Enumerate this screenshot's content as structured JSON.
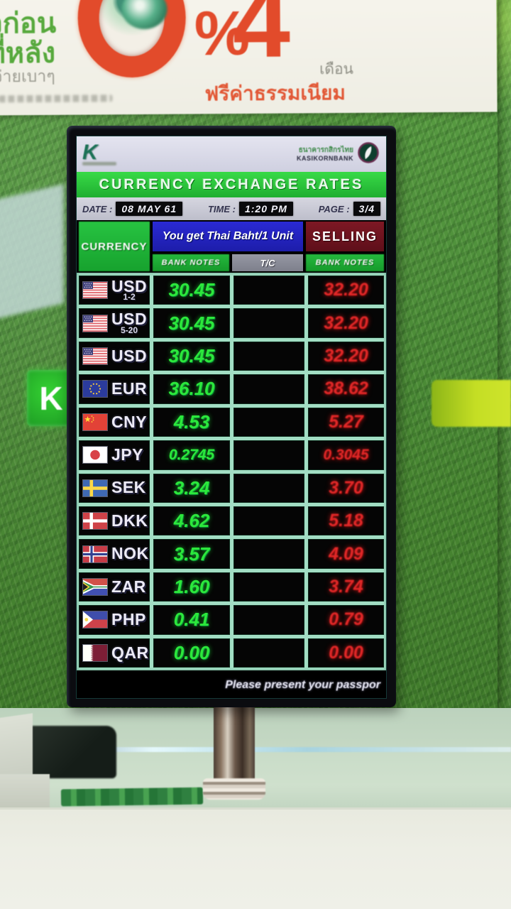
{
  "colors": {
    "buy_green": "#2ce83c",
    "sell_red": "#e02828",
    "title_green": "#28c63e",
    "header_blue": "#2424c8",
    "selling_maroon": "#6e1420",
    "k_sign_green": "#2ab52a"
  },
  "banner": {
    "line1": "ยวก่อน",
    "line2": "ยที่หลัง",
    "line3": "ปงจ่ายเบาๆ",
    "zero": "",
    "percent": "%",
    "four": "4",
    "month": "เดือน",
    "free_fee": "ฟรีค่าธรรมเนียม"
  },
  "k_sign": {
    "label": "K"
  },
  "screen": {
    "k_logo": "K",
    "bank_name_th": "ธนาคารกสิกรไทย",
    "bank_name_en": "KASIKORNBANK",
    "title": "CURRENCY EXCHANGE RATES",
    "date_label": "DATE :",
    "date_value": "08 MAY 61",
    "time_label": "TIME :",
    "time_value": "1:20 PM",
    "page_label": "PAGE :",
    "page_value": "3/4",
    "col_currency": "CURRENCY",
    "col_buy": "You get Thai Baht/1 Unit",
    "col_selling": "SELLING",
    "sub_bank_notes": "BANK NOTES",
    "sub_tc": "T/C",
    "sub_bank_notes2": "BANK NOTES",
    "footer": "Please present your passpor",
    "rows": [
      {
        "flag": "us",
        "code": "USD",
        "sub": "1-2",
        "buy": "30.45",
        "tc": "",
        "sell": "32.20"
      },
      {
        "flag": "us",
        "code": "USD",
        "sub": "5-20",
        "buy": "30.45",
        "tc": "",
        "sell": "32.20"
      },
      {
        "flag": "us",
        "code": "USD",
        "sub": "",
        "buy": "30.45",
        "tc": "",
        "sell": "32.20"
      },
      {
        "flag": "eu",
        "code": "EUR",
        "sub": "",
        "buy": "36.10",
        "tc": "",
        "sell": "38.62"
      },
      {
        "flag": "cn",
        "code": "CNY",
        "sub": "",
        "buy": "4.53",
        "tc": "",
        "sell": "5.27"
      },
      {
        "flag": "jp",
        "code": "JPY",
        "sub": "",
        "buy": "0.2745",
        "tc": "",
        "sell": "0.3045"
      },
      {
        "flag": "se",
        "code": "SEK",
        "sub": "",
        "buy": "3.24",
        "tc": "",
        "sell": "3.70"
      },
      {
        "flag": "dk",
        "code": "DKK",
        "sub": "",
        "buy": "4.62",
        "tc": "",
        "sell": "5.18"
      },
      {
        "flag": "no",
        "code": "NOK",
        "sub": "",
        "buy": "3.57",
        "tc": "",
        "sell": "4.09"
      },
      {
        "flag": "za",
        "code": "ZAR",
        "sub": "",
        "buy": "1.60",
        "tc": "",
        "sell": "3.74"
      },
      {
        "flag": "ph",
        "code": "PHP",
        "sub": "",
        "buy": "0.41",
        "tc": "",
        "sell": "0.79"
      },
      {
        "flag": "qa",
        "code": "QAR",
        "sub": "",
        "buy": "0.00",
        "tc": "",
        "sell": "0.00"
      }
    ]
  }
}
